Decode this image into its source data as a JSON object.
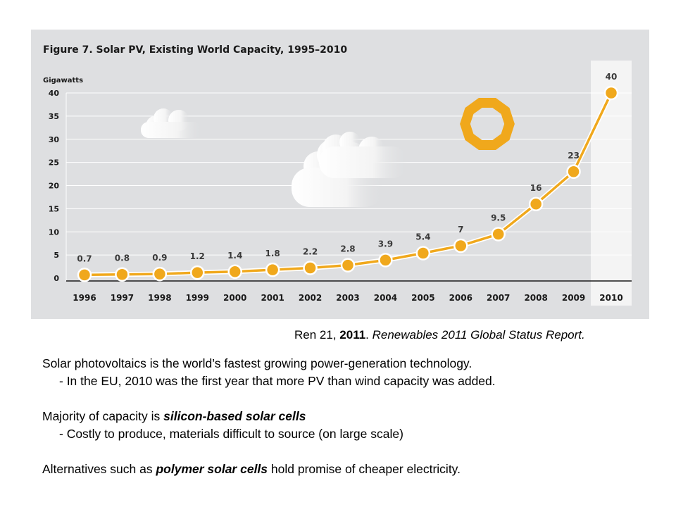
{
  "chart_data": {
    "type": "line",
    "title": "Figure 7. Solar PV, Existing World Capacity, 1995–2010",
    "ylabel": "Gigawatts",
    "categories": [
      "1996",
      "1997",
      "1998",
      "1999",
      "2000",
      "2001",
      "2002",
      "2003",
      "2004",
      "2005",
      "2006",
      "2007",
      "2008",
      "2009",
      "2010"
    ],
    "values": [
      0.7,
      0.8,
      0.9,
      1.2,
      1.4,
      1.8,
      2.2,
      2.8,
      3.9,
      5.4,
      7,
      9.5,
      16,
      23,
      40
    ],
    "value_labels": [
      "0.7",
      "0.8",
      "0.9",
      "1.2",
      "1.4",
      "1.8",
      "2.2",
      "2.8",
      "3.9",
      "5.4",
      "7",
      "9.5",
      "16",
      "23",
      "40"
    ],
    "yticks": [
      0,
      5,
      10,
      15,
      20,
      25,
      30,
      35,
      40
    ],
    "ylim": [
      0,
      40
    ],
    "grid": true,
    "highlight_category": "2010",
    "line_color": "#f0a81c",
    "highlight_color": "#f4f4f4"
  },
  "citation": {
    "author": "Ren 21,",
    "year": "2011",
    "title": "Renewables 2011 Global Status Report."
  },
  "body": {
    "line1": "Solar photovoltaics is the world’s fastest growing power-generation technology.",
    "line2": "- In the EU, 2010 was the first year that more PV than wind capacity was added.",
    "line3_prefix": "Majority of capacity is ",
    "line3_emphasis": "silicon-based solar cells",
    "line4": "- Costly to produce, materials difficult to source (on large scale)",
    "line5_prefix": "Alternatives such as ",
    "line5_emphasis": "polymer solar cells",
    "line5_suffix": " hold promise of cheaper electricity."
  }
}
